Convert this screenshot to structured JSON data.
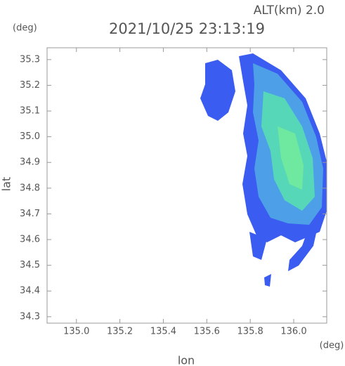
{
  "chart_data": {
    "type": "radar-map",
    "title": "2021/10/25 23:13:19",
    "altitude_label": "ALT(km) 2.0",
    "y_unit": "(deg)",
    "x_unit": "(deg)",
    "xlabel": "lon",
    "ylabel": "lat",
    "xlim": [
      134.865,
      136.152
    ],
    "ylim": [
      34.275,
      35.346
    ],
    "xticks": [
      {
        "value": 135,
        "label": "135.0"
      },
      {
        "value": 135.2,
        "label": "135.2"
      },
      {
        "value": 135.4,
        "label": "135.4"
      },
      {
        "value": 135.6,
        "label": "135.6"
      },
      {
        "value": 135.8,
        "label": "135.8"
      },
      {
        "value": 136,
        "label": "136.0"
      }
    ],
    "yticks": [
      {
        "value": 34.3,
        "label": "34.3"
      },
      {
        "value": 34.4,
        "label": "34.4"
      },
      {
        "value": 34.5,
        "label": "34.5"
      },
      {
        "value": 34.6,
        "label": "34.6"
      },
      {
        "value": 34.7,
        "label": "34.7"
      },
      {
        "value": 34.8,
        "label": "34.8"
      },
      {
        "value": 34.9,
        "label": "34.9"
      },
      {
        "value": 35,
        "label": "35.0"
      },
      {
        "value": 35.1,
        "label": "35.1"
      },
      {
        "value": 35.2,
        "label": "35.2"
      },
      {
        "value": 35.3,
        "label": "35.3"
      }
    ]
  }
}
